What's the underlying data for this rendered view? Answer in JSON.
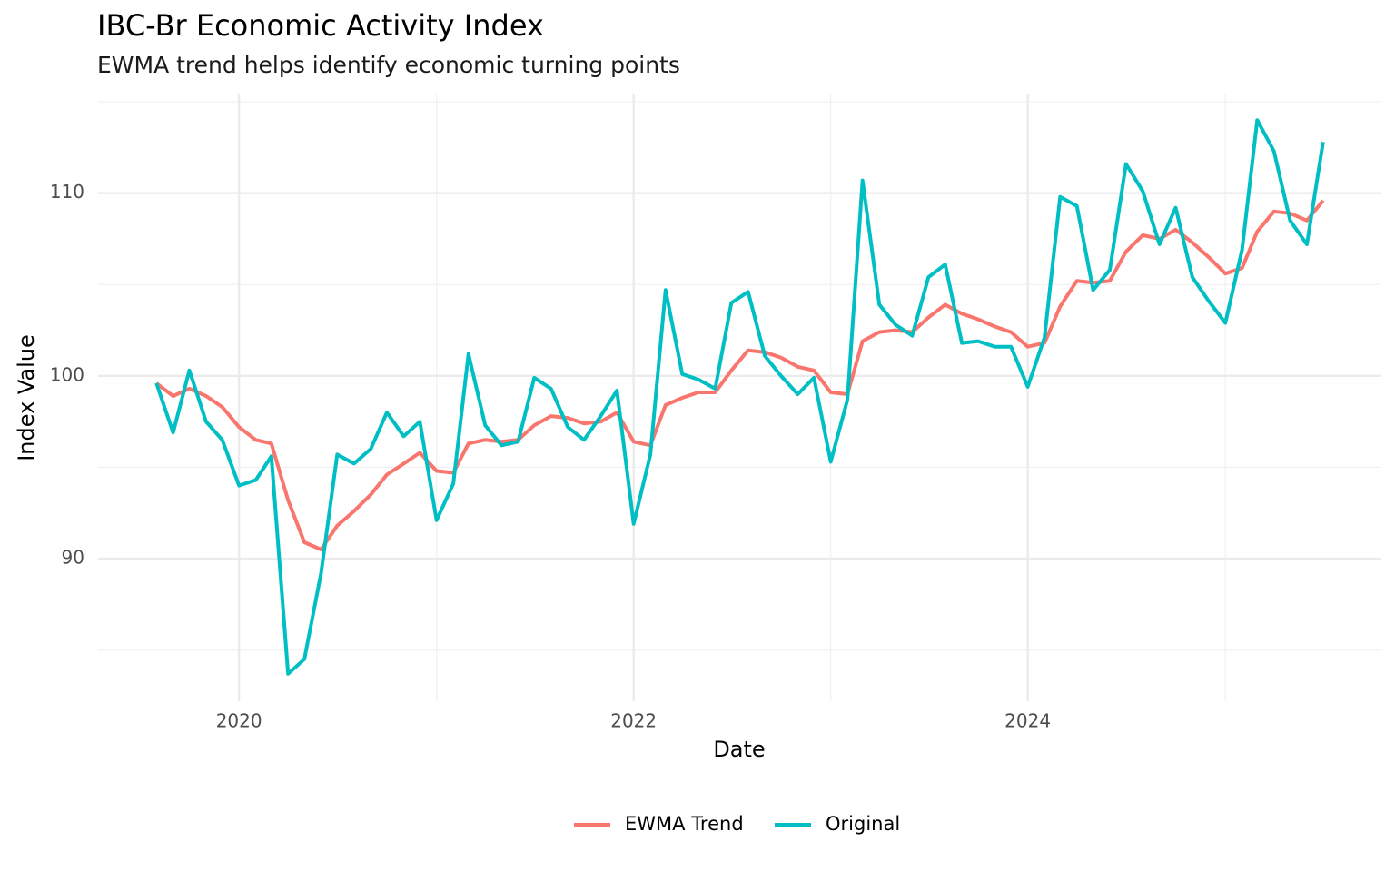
{
  "chart_data": {
    "type": "line",
    "title": "IBC-Br Economic Activity Index",
    "subtitle": "EWMA trend helps identify economic turning points",
    "x_label": "Date",
    "y_label": "Index Value",
    "x": [
      "2019-08",
      "2019-09",
      "2019-10",
      "2019-11",
      "2019-12",
      "2020-01",
      "2020-02",
      "2020-03",
      "2020-04",
      "2020-05",
      "2020-06",
      "2020-07",
      "2020-08",
      "2020-09",
      "2020-10",
      "2020-11",
      "2020-12",
      "2021-01",
      "2021-02",
      "2021-03",
      "2021-04",
      "2021-05",
      "2021-06",
      "2021-07",
      "2021-08",
      "2021-09",
      "2021-10",
      "2021-11",
      "2021-12",
      "2022-01",
      "2022-02",
      "2022-03",
      "2022-04",
      "2022-05",
      "2022-06",
      "2022-07",
      "2022-08",
      "2022-09",
      "2022-10",
      "2022-11",
      "2022-12",
      "2023-01",
      "2023-02",
      "2023-03",
      "2023-04",
      "2023-05",
      "2023-06",
      "2023-07",
      "2023-08",
      "2023-09",
      "2023-10",
      "2023-11",
      "2023-12",
      "2024-01",
      "2024-02",
      "2024-03",
      "2024-04",
      "2024-05",
      "2024-06",
      "2024-07",
      "2024-08",
      "2024-09",
      "2024-10",
      "2024-11",
      "2024-12",
      "2025-01",
      "2025-02",
      "2025-03",
      "2025-04",
      "2025-05",
      "2025-06",
      "2025-07"
    ],
    "series": [
      {
        "name": "EWMA Trend",
        "color": "#F8766D",
        "values": [
          99.6,
          98.9,
          99.3,
          98.9,
          98.3,
          97.2,
          96.5,
          96.3,
          93.2,
          90.9,
          90.5,
          91.8,
          92.6,
          93.5,
          94.6,
          95.2,
          95.8,
          94.8,
          94.7,
          96.3,
          96.5,
          96.4,
          96.5,
          97.3,
          97.8,
          97.7,
          97.4,
          97.5,
          98.0,
          96.4,
          96.2,
          98.4,
          98.8,
          99.1,
          99.1,
          100.3,
          101.4,
          101.3,
          101.0,
          100.5,
          100.3,
          99.1,
          99.0,
          101.9,
          102.4,
          102.5,
          102.4,
          103.2,
          103.9,
          103.4,
          103.1,
          102.7,
          102.4,
          101.6,
          101.8,
          103.8,
          105.2,
          105.1,
          105.2,
          106.8,
          107.7,
          107.5,
          108.0,
          107.3,
          106.5,
          105.6,
          105.9,
          107.9,
          109.0,
          108.9,
          108.5,
          109.6
        ]
      },
      {
        "name": "Original",
        "color": "#00BFC4",
        "values": [
          99.6,
          96.9,
          100.3,
          97.5,
          96.5,
          94.0,
          94.3,
          95.6,
          83.7,
          84.5,
          89.2,
          95.7,
          95.2,
          96.0,
          98.0,
          96.7,
          97.5,
          92.1,
          94.1,
          101.2,
          97.3,
          96.2,
          96.4,
          99.9,
          99.3,
          97.2,
          96.5,
          97.8,
          99.2,
          91.9,
          95.7,
          104.7,
          100.1,
          99.8,
          99.3,
          104.0,
          104.6,
          101.1,
          100.0,
          99.0,
          99.9,
          95.3,
          98.7,
          110.7,
          103.9,
          102.8,
          102.2,
          105.4,
          106.1,
          101.8,
          101.9,
          101.6,
          101.6,
          99.4,
          102.1,
          109.8,
          109.3,
          104.7,
          105.8,
          111.6,
          110.1,
          107.2,
          109.2,
          105.4,
          104.1,
          102.9,
          106.9,
          114.0,
          112.3,
          108.5,
          107.2,
          112.8
        ]
      }
    ],
    "xlim": [
      "2019-04-15",
      "2025-10-17"
    ],
    "xticks": [
      {
        "value": "2020-01",
        "label": "2020"
      },
      {
        "value": "2022-01",
        "label": "2022"
      },
      {
        "value": "2024-01",
        "label": "2024"
      }
    ],
    "xminor": [
      "2021-01",
      "2023-01",
      "2025-01"
    ],
    "ylim": [
      82.2,
      115.4
    ],
    "yticks": [
      90,
      100,
      110
    ],
    "yminor": [
      85,
      95,
      105,
      115
    ],
    "grid": true,
    "legend": "bottom"
  }
}
